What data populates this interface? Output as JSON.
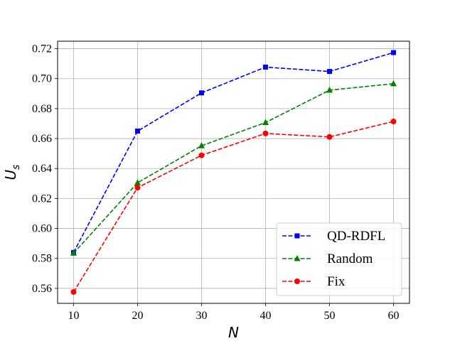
{
  "chart_data": {
    "type": "line",
    "xlabel": "N",
    "ylabel_main": "U",
    "ylabel_sub": "s",
    "x": [
      10,
      20,
      30,
      40,
      50,
      60
    ],
    "xlim": [
      7.5,
      62.5
    ],
    "ylim": [
      0.55,
      0.725
    ],
    "xticks": [
      "10",
      "20",
      "30",
      "40",
      "50",
      "60"
    ],
    "yticks": [
      "0.56",
      "0.58",
      "0.60",
      "0.62",
      "0.64",
      "0.66",
      "0.68",
      "0.70",
      "0.72"
    ],
    "grid": true,
    "legend_position": "lower-right",
    "series": [
      {
        "name": "QD-RDFL",
        "color": "#0000ff",
        "marker": "square",
        "linestyle": "dashed",
        "values": [
          0.584,
          0.665,
          0.6905,
          0.7077,
          0.7048,
          0.7174
        ]
      },
      {
        "name": "Random",
        "color": "#008000",
        "marker": "triangle",
        "linestyle": "dashed",
        "values": [
          0.5835,
          0.6305,
          0.6552,
          0.6707,
          0.6923,
          0.6966
        ]
      },
      {
        "name": "Fix",
        "color": "#ff0000",
        "marker": "circle",
        "linestyle": "dashed",
        "values": [
          0.5576,
          0.6272,
          0.6488,
          0.6634,
          0.6611,
          0.6714
        ]
      }
    ]
  }
}
